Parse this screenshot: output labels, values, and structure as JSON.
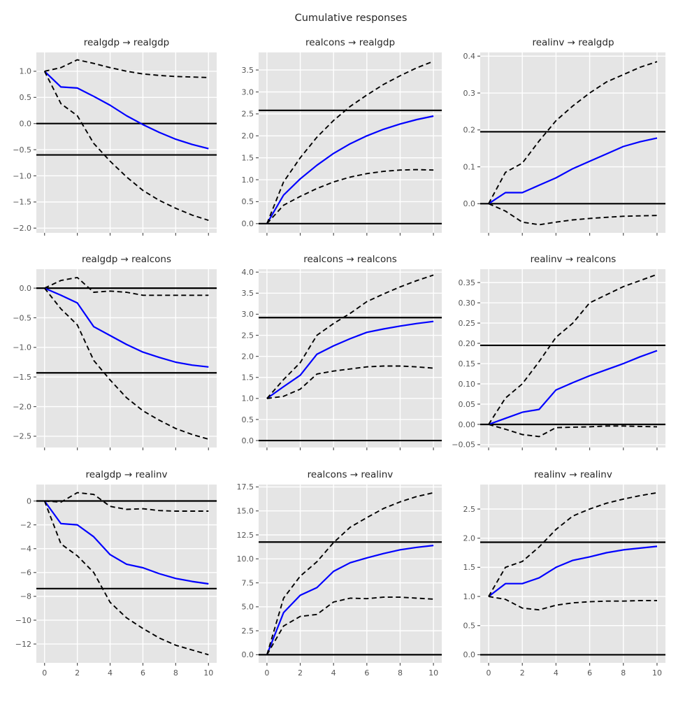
{
  "figure": {
    "suptitle": "Cumulative responses"
  },
  "colors": {
    "figure_background": "#ffffff",
    "plot_background": "#e5e5e5",
    "gridline": "#ffffff",
    "tick_color": "#555555",
    "title_color": "#262626",
    "response_line": "#0000ff",
    "band_line": "#000000",
    "reference_line": "#000000"
  },
  "chart_data": [
    {
      "type": "line",
      "title": "realgdp → realgdp",
      "x": [
        0,
        1,
        2,
        3,
        4,
        5,
        6,
        7,
        8,
        9,
        10
      ],
      "xticks": [
        0,
        2,
        4,
        6,
        8,
        10
      ],
      "xlim": [
        -0.5,
        10.5
      ],
      "ylim": [
        -2.09,
        1.36
      ],
      "yticks": [
        1.0,
        0.5,
        0.0,
        -0.5,
        -1.0,
        -1.5,
        -2.0
      ],
      "ytick_decimals": 1,
      "show_x_tick_labels": false,
      "hlines": [
        0.0,
        -0.6
      ],
      "series": [
        {
          "name": "response",
          "style": "solid",
          "values": [
            1.0,
            0.7,
            0.68,
            0.52,
            0.35,
            0.15,
            -0.02,
            -0.17,
            -0.3,
            -0.4,
            -0.48
          ]
        },
        {
          "name": "upper-band",
          "style": "dashed",
          "values": [
            1.0,
            1.07,
            1.22,
            1.15,
            1.07,
            1.0,
            0.95,
            0.92,
            0.9,
            0.89,
            0.88
          ]
        },
        {
          "name": "lower-band",
          "style": "dashed",
          "values": [
            1.0,
            0.38,
            0.15,
            -0.38,
            -0.72,
            -1.02,
            -1.28,
            -1.47,
            -1.62,
            -1.75,
            -1.85
          ]
        }
      ]
    },
    {
      "type": "line",
      "title": "realcons → realgdp",
      "x": [
        0,
        1,
        2,
        3,
        4,
        5,
        6,
        7,
        8,
        9,
        10
      ],
      "xticks": [
        0,
        2,
        4,
        6,
        8,
        10
      ],
      "xlim": [
        -0.5,
        10.5
      ],
      "ylim": [
        -0.21,
        3.9
      ],
      "yticks": [
        3.5,
        3.0,
        2.5,
        2.0,
        1.5,
        1.0,
        0.5,
        0.0
      ],
      "ytick_decimals": 1,
      "show_x_tick_labels": false,
      "hlines": [
        0.0,
        2.58
      ],
      "series": [
        {
          "name": "response",
          "style": "solid",
          "values": [
            0.0,
            0.65,
            1.02,
            1.33,
            1.6,
            1.82,
            2.0,
            2.15,
            2.27,
            2.37,
            2.45
          ]
        },
        {
          "name": "upper-band",
          "style": "dashed",
          "values": [
            0.0,
            0.95,
            1.5,
            1.97,
            2.35,
            2.67,
            2.93,
            3.17,
            3.37,
            3.55,
            3.7
          ]
        },
        {
          "name": "lower-band",
          "style": "dashed",
          "values": [
            0.0,
            0.42,
            0.62,
            0.8,
            0.95,
            1.06,
            1.14,
            1.19,
            1.22,
            1.23,
            1.22
          ]
        }
      ]
    },
    {
      "type": "line",
      "title": "realinv → realgdp",
      "x": [
        0,
        1,
        2,
        3,
        4,
        5,
        6,
        7,
        8,
        9,
        10
      ],
      "xticks": [
        0,
        2,
        4,
        6,
        8,
        10
      ],
      "xlim": [
        -0.5,
        10.5
      ],
      "ylim": [
        -0.079,
        0.41
      ],
      "yticks": [
        0.4,
        0.3,
        0.2,
        0.1,
        0.0
      ],
      "ytick_decimals": 1,
      "show_x_tick_labels": false,
      "hlines": [
        0.0,
        0.195
      ],
      "series": [
        {
          "name": "response",
          "style": "solid",
          "values": [
            0.0,
            0.03,
            0.03,
            0.05,
            0.07,
            0.095,
            0.115,
            0.135,
            0.155,
            0.168,
            0.178
          ]
        },
        {
          "name": "upper-band",
          "style": "dashed",
          "values": [
            0.0,
            0.085,
            0.11,
            0.17,
            0.225,
            0.265,
            0.3,
            0.33,
            0.35,
            0.37,
            0.385
          ]
        },
        {
          "name": "lower-band",
          "style": "dashed",
          "values": [
            0.0,
            -0.02,
            -0.05,
            -0.057,
            -0.05,
            -0.044,
            -0.04,
            -0.037,
            -0.034,
            -0.033,
            -0.032
          ]
        }
      ]
    },
    {
      "type": "line",
      "title": "realgdp → realcons",
      "x": [
        0,
        1,
        2,
        3,
        4,
        5,
        6,
        7,
        8,
        9,
        10
      ],
      "xticks": [
        0,
        2,
        4,
        6,
        8,
        10
      ],
      "xlim": [
        -0.5,
        10.5
      ],
      "ylim": [
        -2.69,
        0.32
      ],
      "yticks": [
        0.0,
        -0.5,
        -1.0,
        -1.5,
        -2.0,
        -2.5
      ],
      "ytick_decimals": 1,
      "show_x_tick_labels": false,
      "hlines": [
        0.0,
        -1.43
      ],
      "series": [
        {
          "name": "response",
          "style": "solid",
          "values": [
            0.0,
            -0.12,
            -0.25,
            -0.65,
            -0.8,
            -0.95,
            -1.08,
            -1.17,
            -1.25,
            -1.3,
            -1.33
          ]
        },
        {
          "name": "upper-band",
          "style": "dashed",
          "values": [
            0.0,
            0.13,
            0.18,
            -0.07,
            -0.05,
            -0.07,
            -0.12,
            -0.12,
            -0.12,
            -0.12,
            -0.12
          ]
        },
        {
          "name": "lower-band",
          "style": "dashed",
          "values": [
            0.0,
            -0.35,
            -0.62,
            -1.22,
            -1.55,
            -1.85,
            -2.07,
            -2.23,
            -2.37,
            -2.47,
            -2.55
          ]
        }
      ]
    },
    {
      "type": "line",
      "title": "realcons → realcons",
      "x": [
        0,
        1,
        2,
        3,
        4,
        5,
        6,
        7,
        8,
        9,
        10
      ],
      "xticks": [
        0,
        2,
        4,
        6,
        8,
        10
      ],
      "xlim": [
        -0.5,
        10.5
      ],
      "ylim": [
        -0.165,
        4.07
      ],
      "yticks": [
        4.0,
        3.5,
        3.0,
        2.5,
        2.0,
        1.5,
        1.0,
        0.5,
        0.0
      ],
      "ytick_decimals": 1,
      "show_x_tick_labels": false,
      "hlines": [
        0.0,
        2.92
      ],
      "series": [
        {
          "name": "response",
          "style": "solid",
          "values": [
            1.0,
            1.28,
            1.55,
            2.05,
            2.25,
            2.42,
            2.57,
            2.65,
            2.72,
            2.78,
            2.83
          ]
        },
        {
          "name": "upper-band",
          "style": "dashed",
          "values": [
            1.0,
            1.45,
            1.85,
            2.5,
            2.78,
            3.02,
            3.3,
            3.48,
            3.65,
            3.8,
            3.93
          ]
        },
        {
          "name": "lower-band",
          "style": "dashed",
          "values": [
            1.0,
            1.05,
            1.22,
            1.58,
            1.65,
            1.7,
            1.75,
            1.77,
            1.77,
            1.75,
            1.72
          ]
        }
      ]
    },
    {
      "type": "line",
      "title": "realinv → realcons",
      "x": [
        0,
        1,
        2,
        3,
        4,
        5,
        6,
        7,
        8,
        9,
        10
      ],
      "xticks": [
        0,
        2,
        4,
        6,
        8,
        10
      ],
      "xlim": [
        -0.5,
        10.5
      ],
      "ylim": [
        -0.057,
        0.383
      ],
      "yticks": [
        0.35,
        0.3,
        0.25,
        0.2,
        0.15,
        0.1,
        0.05,
        0.0,
        -0.05
      ],
      "ytick_decimals": 2,
      "show_x_tick_labels": false,
      "hlines": [
        0.0,
        0.195
      ],
      "series": [
        {
          "name": "response",
          "style": "solid",
          "values": [
            0.0,
            0.015,
            0.03,
            0.037,
            0.085,
            0.103,
            0.12,
            0.135,
            0.15,
            0.167,
            0.182
          ]
        },
        {
          "name": "upper-band",
          "style": "dashed",
          "values": [
            0.0,
            0.065,
            0.1,
            0.155,
            0.215,
            0.25,
            0.3,
            0.32,
            0.34,
            0.355,
            0.37
          ]
        },
        {
          "name": "lower-band",
          "style": "dashed",
          "values": [
            0.0,
            -0.012,
            -0.025,
            -0.03,
            -0.008,
            -0.007,
            -0.006,
            -0.004,
            -0.004,
            -0.005,
            -0.006
          ]
        }
      ]
    },
    {
      "type": "line",
      "title": "realgdp → realinv",
      "x": [
        0,
        1,
        2,
        3,
        4,
        5,
        6,
        7,
        8,
        9,
        10
      ],
      "xticks": [
        0,
        2,
        4,
        6,
        8,
        10
      ],
      "xlim": [
        -0.5,
        10.5
      ],
      "ylim": [
        -13.58,
        1.38
      ],
      "yticks": [
        0,
        -2,
        -4,
        -6,
        -8,
        -10,
        -12
      ],
      "ytick_decimals": 0,
      "show_x_tick_labels": true,
      "hlines": [
        0.0,
        -7.35
      ],
      "series": [
        {
          "name": "response",
          "style": "solid",
          "values": [
            0.0,
            -1.9,
            -2.0,
            -3.0,
            -4.5,
            -5.3,
            -5.6,
            -6.1,
            -6.5,
            -6.75,
            -6.95
          ]
        },
        {
          "name": "upper-band",
          "style": "dashed",
          "values": [
            0.0,
            -0.1,
            0.7,
            0.55,
            -0.45,
            -0.7,
            -0.65,
            -0.8,
            -0.85,
            -0.85,
            -0.85
          ]
        },
        {
          "name": "lower-band",
          "style": "dashed",
          "values": [
            0.0,
            -3.6,
            -4.6,
            -6.0,
            -8.5,
            -9.8,
            -10.7,
            -11.5,
            -12.1,
            -12.5,
            -12.9
          ]
        }
      ]
    },
    {
      "type": "line",
      "title": "realcons → realinv",
      "x": [
        0,
        1,
        2,
        3,
        4,
        5,
        6,
        7,
        8,
        9,
        10
      ],
      "xticks": [
        0,
        2,
        4,
        6,
        8,
        10
      ],
      "xlim": [
        -0.5,
        10.5
      ],
      "ylim": [
        -0.845,
        17.75
      ],
      "yticks": [
        17.5,
        15.0,
        12.5,
        10.0,
        7.5,
        5.0,
        2.5,
        0.0
      ],
      "ytick_decimals": 1,
      "show_x_tick_labels": true,
      "hlines": [
        0.0,
        11.75
      ],
      "series": [
        {
          "name": "response",
          "style": "solid",
          "values": [
            0.0,
            4.4,
            6.2,
            7.0,
            8.7,
            9.6,
            10.1,
            10.55,
            10.95,
            11.2,
            11.4
          ]
        },
        {
          "name": "upper-band",
          "style": "dashed",
          "values": [
            0.0,
            5.9,
            8.2,
            9.7,
            11.7,
            13.3,
            14.3,
            15.25,
            15.95,
            16.5,
            16.9
          ]
        },
        {
          "name": "lower-band",
          "style": "dashed",
          "values": [
            0.0,
            3.0,
            4.0,
            4.2,
            5.5,
            5.9,
            5.85,
            6.0,
            6.0,
            5.9,
            5.8
          ]
        }
      ]
    },
    {
      "type": "line",
      "title": "realinv → realinv",
      "x": [
        0,
        1,
        2,
        3,
        4,
        5,
        6,
        7,
        8,
        9,
        10
      ],
      "xticks": [
        0,
        2,
        4,
        6,
        8,
        10
      ],
      "xlim": [
        -0.5,
        10.5
      ],
      "ylim": [
        -0.139,
        2.92
      ],
      "yticks": [
        2.5,
        2.0,
        1.5,
        1.0,
        0.5,
        0.0
      ],
      "ytick_decimals": 1,
      "show_x_tick_labels": true,
      "hlines": [
        0.0,
        1.93
      ],
      "series": [
        {
          "name": "response",
          "style": "solid",
          "values": [
            1.0,
            1.22,
            1.22,
            1.32,
            1.5,
            1.62,
            1.68,
            1.75,
            1.8,
            1.83,
            1.86
          ]
        },
        {
          "name": "upper-band",
          "style": "dashed",
          "values": [
            1.0,
            1.5,
            1.6,
            1.85,
            2.15,
            2.38,
            2.5,
            2.6,
            2.67,
            2.73,
            2.78
          ]
        },
        {
          "name": "lower-band",
          "style": "dashed",
          "values": [
            1.0,
            0.95,
            0.8,
            0.77,
            0.85,
            0.89,
            0.91,
            0.92,
            0.92,
            0.93,
            0.93
          ]
        }
      ]
    }
  ]
}
